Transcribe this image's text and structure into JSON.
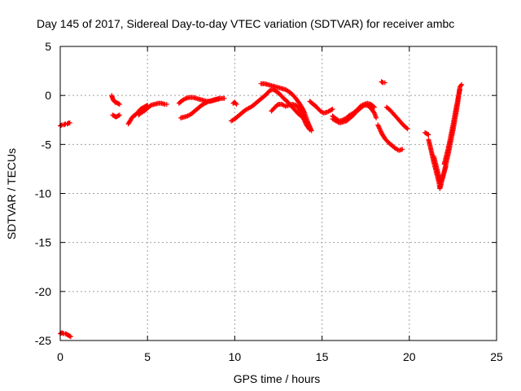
{
  "chart_data": {
    "type": "scatter",
    "title": "Day 145 of 2017, Sidereal Day-to-day VTEC variation (SDTVAR) for receiver ambc",
    "xlabel": "GPS time / hours",
    "ylabel": "SDTVAR / TECUs",
    "xlim": [
      0,
      25
    ],
    "ylim": [
      -25,
      5
    ],
    "x_ticks": [
      0,
      5,
      10,
      15,
      20,
      25
    ],
    "y_ticks": [
      5,
      0,
      -5,
      -10,
      -15,
      -20,
      -25
    ],
    "x_tick_labels": [
      "0",
      "5",
      "10",
      "15",
      "20",
      "25"
    ],
    "y_tick_labels": [
      "5",
      "0",
      "-5",
      "-10",
      "-15",
      "-20",
      "-25"
    ],
    "grid": true,
    "marker": "plus",
    "color": "#ff0000",
    "series": [
      {
        "name": "SDTVAR",
        "segments": [
          [
            [
              0.0,
              -3.1
            ],
            [
              0.1,
              -3.0
            ],
            [
              0.2,
              -3.0
            ],
            [
              0.3,
              -2.9
            ],
            [
              0.4,
              -2.9
            ],
            [
              0.5,
              -2.8
            ],
            [
              0.55,
              -2.8
            ]
          ],
          [
            [
              0.0,
              -24.3
            ],
            [
              0.1,
              -24.2
            ],
            [
              0.2,
              -24.3
            ],
            [
              0.3,
              -24.3
            ],
            [
              0.4,
              -24.4
            ],
            [
              0.5,
              -24.5
            ],
            [
              0.6,
              -24.6
            ]
          ],
          [
            [
              2.95,
              0.0
            ],
            [
              3.0,
              -0.3
            ],
            [
              3.05,
              -0.5
            ],
            [
              3.1,
              -0.6
            ],
            [
              3.15,
              -0.7
            ],
            [
              3.2,
              -0.7
            ],
            [
              3.3,
              -0.8
            ],
            [
              3.4,
              -0.9
            ]
          ],
          [
            [
              3.0,
              -2.0
            ],
            [
              3.1,
              -2.1
            ],
            [
              3.2,
              -2.2
            ],
            [
              3.3,
              -2.1
            ],
            [
              3.4,
              -2.0
            ]
          ],
          [
            [
              3.9,
              -2.9
            ],
            [
              4.0,
              -2.6
            ],
            [
              4.1,
              -2.3
            ],
            [
              4.2,
              -2.1
            ],
            [
              4.3,
              -2.0
            ],
            [
              4.4,
              -1.8
            ],
            [
              4.5,
              -1.6
            ],
            [
              4.6,
              -1.4
            ],
            [
              4.7,
              -1.3
            ],
            [
              4.8,
              -1.2
            ],
            [
              4.9,
              -1.1
            ],
            [
              5.0,
              -1.0
            ]
          ],
          [
            [
              4.5,
              -2.0
            ],
            [
              4.6,
              -1.8
            ],
            [
              4.8,
              -1.6
            ],
            [
              5.0,
              -1.3
            ],
            [
              5.2,
              -1.0
            ],
            [
              5.4,
              -0.9
            ],
            [
              5.6,
              -0.8
            ],
            [
              5.8,
              -0.8
            ],
            [
              6.0,
              -0.9
            ],
            [
              6.1,
              -0.9
            ]
          ],
          [
            [
              6.8,
              -0.8
            ],
            [
              7.0,
              -0.5
            ],
            [
              7.2,
              -0.3
            ],
            [
              7.4,
              -0.2
            ],
            [
              7.6,
              -0.2
            ],
            [
              7.8,
              -0.3
            ],
            [
              8.0,
              -0.4
            ],
            [
              8.2,
              -0.5
            ],
            [
              8.4,
              -0.6
            ],
            [
              8.6,
              -0.6
            ],
            [
              8.8,
              -0.5
            ],
            [
              9.0,
              -0.4
            ],
            [
              9.2,
              -0.3
            ],
            [
              9.4,
              -0.3
            ]
          ],
          [
            [
              6.9,
              -2.3
            ],
            [
              7.1,
              -2.2
            ],
            [
              7.3,
              -2.1
            ],
            [
              7.5,
              -1.9
            ],
            [
              7.7,
              -1.6
            ],
            [
              7.9,
              -1.3
            ],
            [
              8.1,
              -1.0
            ],
            [
              8.3,
              -0.8
            ],
            [
              8.5,
              -0.6
            ],
            [
              8.7,
              -0.5
            ],
            [
              8.9,
              -0.4
            ],
            [
              9.1,
              -0.3
            ]
          ],
          [
            [
              9.9,
              -0.8
            ],
            [
              10.0,
              -0.7
            ],
            [
              10.1,
              -0.9
            ]
          ],
          [
            [
              9.8,
              -2.6
            ],
            [
              10.0,
              -2.4
            ],
            [
              10.2,
              -2.1
            ],
            [
              10.4,
              -1.8
            ],
            [
              10.6,
              -1.5
            ],
            [
              10.8,
              -1.3
            ],
            [
              11.0,
              -1.1
            ],
            [
              11.2,
              -0.8
            ],
            [
              11.4,
              -0.5
            ],
            [
              11.6,
              -0.2
            ],
            [
              11.8,
              0.1
            ],
            [
              12.0,
              0.5
            ],
            [
              12.2,
              0.6
            ],
            [
              12.4,
              0.4
            ],
            [
              12.6,
              0.1
            ],
            [
              12.8,
              -0.3
            ],
            [
              13.0,
              -0.6
            ],
            [
              13.2,
              -1.0
            ],
            [
              13.4,
              -1.4
            ],
            [
              13.6,
              -1.8
            ],
            [
              13.8,
              -2.1
            ],
            [
              14.0,
              -2.4
            ]
          ],
          [
            [
              11.5,
              1.2
            ],
            [
              11.7,
              1.2
            ],
            [
              11.9,
              1.1
            ],
            [
              12.1,
              1.0
            ],
            [
              12.3,
              0.9
            ],
            [
              12.5,
              0.8
            ],
            [
              12.7,
              0.7
            ],
            [
              12.9,
              0.6
            ],
            [
              13.1,
              0.4
            ],
            [
              13.3,
              0.1
            ],
            [
              13.5,
              -0.3
            ],
            [
              13.7,
              -0.8
            ],
            [
              13.9,
              -1.4
            ],
            [
              14.0,
              -1.8
            ],
            [
              14.1,
              -2.3
            ],
            [
              14.2,
              -2.8
            ],
            [
              14.3,
              -3.2
            ],
            [
              14.4,
              -3.6
            ]
          ],
          [
            [
              12.1,
              -1.6
            ],
            [
              12.3,
              -1.2
            ],
            [
              12.5,
              -0.9
            ],
            [
              12.7,
              -0.9
            ],
            [
              12.9,
              -1.1
            ],
            [
              13.1,
              -1.0
            ],
            [
              13.3,
              -0.9
            ],
            [
              13.5,
              -1.0
            ],
            [
              13.7,
              -1.4
            ],
            [
              13.9,
              -2.2
            ],
            [
              14.1,
              -3.0
            ],
            [
              14.3,
              -3.5
            ]
          ],
          [
            [
              14.3,
              -0.6
            ],
            [
              14.5,
              -0.9
            ],
            [
              14.7,
              -1.2
            ],
            [
              14.9,
              -1.6
            ],
            [
              15.1,
              -1.8
            ],
            [
              15.3,
              -1.7
            ],
            [
              15.5,
              -1.5
            ],
            [
              15.6,
              -1.4
            ]
          ],
          [
            [
              15.6,
              -2.4
            ],
            [
              15.8,
              -2.6
            ],
            [
              16.0,
              -2.8
            ],
            [
              16.2,
              -2.7
            ],
            [
              16.4,
              -2.6
            ],
            [
              16.6,
              -2.3
            ],
            [
              16.8,
              -2.0
            ],
            [
              17.0,
              -1.6
            ],
            [
              17.2,
              -1.3
            ],
            [
              17.4,
              -1.0
            ],
            [
              17.6,
              -1.0
            ],
            [
              17.8,
              -1.3
            ],
            [
              18.0,
              -1.8
            ],
            [
              18.1,
              -2.3
            ]
          ],
          [
            [
              15.6,
              -2.1
            ],
            [
              15.8,
              -2.4
            ],
            [
              16.0,
              -2.6
            ],
            [
              16.2,
              -2.5
            ],
            [
              16.4,
              -2.3
            ],
            [
              16.6,
              -2.0
            ],
            [
              16.8,
              -1.8
            ],
            [
              17.0,
              -1.5
            ],
            [
              17.2,
              -1.1
            ],
            [
              17.4,
              -0.9
            ],
            [
              17.6,
              -0.8
            ],
            [
              17.8,
              -0.9
            ],
            [
              18.0,
              -1.2
            ]
          ],
          [
            [
              18.2,
              -3.0
            ],
            [
              18.4,
              -3.8
            ],
            [
              18.6,
              -4.4
            ],
            [
              18.8,
              -4.8
            ],
            [
              19.0,
              -5.1
            ],
            [
              19.2,
              -5.4
            ],
            [
              19.4,
              -5.6
            ],
            [
              19.6,
              -5.5
            ]
          ],
          [
            [
              18.4,
              1.4
            ],
            [
              18.5,
              1.3
            ],
            [
              18.6,
              1.3
            ]
          ],
          [
            [
              18.7,
              -1.2
            ],
            [
              18.9,
              -1.5
            ],
            [
              19.1,
              -1.9
            ],
            [
              19.3,
              -2.3
            ],
            [
              19.5,
              -2.7
            ],
            [
              19.7,
              -3.1
            ],
            [
              19.9,
              -3.4
            ]
          ],
          [
            [
              20.9,
              -3.8
            ],
            [
              21.0,
              -3.9
            ],
            [
              21.1,
              -4.0
            ]
          ],
          [
            [
              21.1,
              -4.5
            ],
            [
              21.2,
              -5.2
            ],
            [
              21.3,
              -6.0
            ],
            [
              21.4,
              -6.8
            ],
            [
              21.5,
              -7.5
            ],
            [
              21.6,
              -8.2
            ],
            [
              21.7,
              -8.9
            ],
            [
              21.75,
              -9.5
            ],
            [
              21.8,
              -9.2
            ],
            [
              21.9,
              -8.4
            ],
            [
              22.0,
              -7.8
            ],
            [
              22.1,
              -7.2
            ]
          ],
          [
            [
              21.4,
              -6.2
            ],
            [
              21.5,
              -6.9
            ],
            [
              21.6,
              -7.6
            ],
            [
              21.7,
              -8.3
            ],
            [
              21.8,
              -8.8
            ],
            [
              21.9,
              -8.5
            ],
            [
              22.0,
              -7.8
            ],
            [
              22.1,
              -7.0
            ],
            [
              22.2,
              -6.2
            ],
            [
              22.3,
              -5.4
            ],
            [
              22.4,
              -4.5
            ],
            [
              22.5,
              -3.6
            ],
            [
              22.6,
              -2.6
            ],
            [
              22.7,
              -1.6
            ],
            [
              22.8,
              -0.5
            ],
            [
              22.85,
              0.3
            ],
            [
              22.9,
              0.9
            ],
            [
              23.0,
              1.1
            ]
          ],
          [
            [
              22.0,
              -7.0
            ],
            [
              22.1,
              -6.3
            ],
            [
              22.2,
              -5.6
            ],
            [
              22.3,
              -4.8
            ],
            [
              22.4,
              -3.9
            ],
            [
              22.5,
              -3.0
            ],
            [
              22.6,
              -2.1
            ],
            [
              22.7,
              -1.1
            ],
            [
              22.8,
              -0.2
            ],
            [
              22.9,
              0.6
            ]
          ]
        ]
      }
    ]
  }
}
